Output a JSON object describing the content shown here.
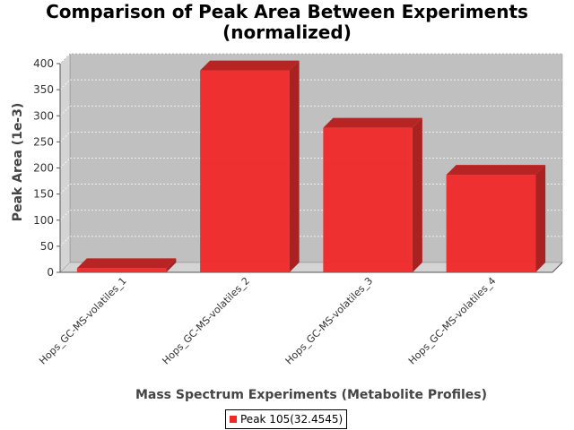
{
  "chart_data": {
    "type": "bar",
    "title": "Comparison of Peak Area Between Experiments",
    "subtitle": "(normalized)",
    "xlabel": "Mass Spectrum Experiments (Metabolite Profiles)",
    "ylabel": "Peak Area (1e-3)",
    "categories": [
      "Hops_GC-MS-volatiles_1",
      "Hops_GC-MS-volatiles_2",
      "Hops_GC-MS-volatiles_3",
      "Hops_GC-MS-volatiles_4"
    ],
    "series": [
      {
        "name": "Peak 105(32.4545)",
        "values": [
          8,
          387,
          277,
          187
        ],
        "color": "#f02828"
      }
    ],
    "ylim": [
      0,
      400
    ],
    "yticks": [
      0,
      50,
      100,
      150,
      200,
      250,
      300,
      350,
      400
    ],
    "grid": true,
    "legend_position": "bottom",
    "style": "3d"
  }
}
